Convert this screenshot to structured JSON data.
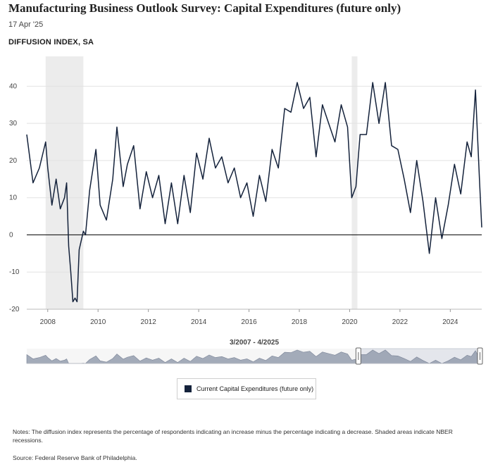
{
  "header": {
    "title": "Manufacturing Business Outlook Survey: Capital Expenditures (future only)",
    "date": "17 Apr '25",
    "units_label": "DIFFUSION INDEX, SA"
  },
  "navigator": {
    "range_label": "3/2007 - 4/2025"
  },
  "legend": {
    "label": "Current Capital Expenditures (future only)",
    "color": "#14223b"
  },
  "notes": "Notes: The diffusion index represents the percentage of respondents indicating an increase minus the percentage indicating a decrease. Shaded areas indicate NBER recessions.",
  "source": "Source: Federal Reserve Bank of Philadelphia.",
  "chart_data": {
    "type": "line",
    "x_range": [
      "2007-03",
      "2025-04"
    ],
    "ylim": [
      -20,
      45
    ],
    "y_ticks": [
      "-20",
      "-10",
      "0",
      "10",
      "20",
      "30",
      "40"
    ],
    "x_ticks": [
      "2008",
      "2010",
      "2012",
      "2014",
      "2016",
      "2018",
      "2020",
      "2022",
      "2024"
    ],
    "recessions": [
      [
        "2007-12",
        "2009-06"
      ],
      [
        "2020-02",
        "2020-04"
      ]
    ],
    "series": [
      {
        "name": "Current Capital Expenditures (future only)",
        "points": [
          [
            "2007-03",
            27
          ],
          [
            "2007-06",
            14
          ],
          [
            "2007-09",
            18
          ],
          [
            "2007-12",
            25
          ],
          [
            "2008-01",
            18
          ],
          [
            "2008-03",
            8
          ],
          [
            "2008-05",
            15
          ],
          [
            "2008-07",
            7
          ],
          [
            "2008-09",
            10
          ],
          [
            "2008-10",
            14
          ],
          [
            "2008-11",
            -3
          ],
          [
            "2008-12",
            -10
          ],
          [
            "2009-01",
            -18
          ],
          [
            "2009-02",
            -17
          ],
          [
            "2009-03",
            -18
          ],
          [
            "2009-04",
            -4
          ],
          [
            "2009-06",
            1
          ],
          [
            "2009-07",
            0
          ],
          [
            "2009-09",
            12
          ],
          [
            "2009-12",
            23
          ],
          [
            "2010-02",
            8
          ],
          [
            "2010-05",
            4
          ],
          [
            "2010-08",
            15
          ],
          [
            "2010-10",
            29
          ],
          [
            "2011-01",
            13
          ],
          [
            "2011-03",
            19
          ],
          [
            "2011-06",
            24
          ],
          [
            "2011-09",
            7
          ],
          [
            "2011-12",
            17
          ],
          [
            "2012-03",
            10
          ],
          [
            "2012-06",
            16
          ],
          [
            "2012-09",
            3
          ],
          [
            "2012-12",
            14
          ],
          [
            "2013-03",
            3
          ],
          [
            "2013-06",
            16
          ],
          [
            "2013-09",
            6
          ],
          [
            "2013-12",
            22
          ],
          [
            "2014-03",
            15
          ],
          [
            "2014-06",
            26
          ],
          [
            "2014-09",
            18
          ],
          [
            "2014-12",
            21
          ],
          [
            "2015-03",
            14
          ],
          [
            "2015-06",
            18
          ],
          [
            "2015-09",
            10
          ],
          [
            "2015-12",
            14
          ],
          [
            "2016-03",
            5
          ],
          [
            "2016-06",
            16
          ],
          [
            "2016-09",
            9
          ],
          [
            "2016-12",
            23
          ],
          [
            "2017-03",
            18
          ],
          [
            "2017-06",
            34
          ],
          [
            "2017-09",
            33
          ],
          [
            "2017-12",
            41
          ],
          [
            "2018-03",
            34
          ],
          [
            "2018-06",
            37
          ],
          [
            "2018-09",
            21
          ],
          [
            "2018-12",
            35
          ],
          [
            "2019-03",
            30
          ],
          [
            "2019-06",
            25
          ],
          [
            "2019-09",
            35
          ],
          [
            "2019-12",
            29
          ],
          [
            "2020-02",
            10
          ],
          [
            "2020-04",
            13
          ],
          [
            "2020-06",
            27
          ],
          [
            "2020-09",
            27
          ],
          [
            "2020-12",
            41
          ],
          [
            "2021-03",
            30
          ],
          [
            "2021-06",
            41
          ],
          [
            "2021-09",
            24
          ],
          [
            "2021-12",
            23
          ],
          [
            "2022-03",
            15
          ],
          [
            "2022-06",
            6
          ],
          [
            "2022-09",
            20
          ],
          [
            "2022-12",
            9
          ],
          [
            "2023-03",
            -5
          ],
          [
            "2023-06",
            10
          ],
          [
            "2023-09",
            -1
          ],
          [
            "2023-12",
            8
          ],
          [
            "2024-03",
            19
          ],
          [
            "2024-06",
            11
          ],
          [
            "2024-09",
            25
          ],
          [
            "2024-11",
            21
          ],
          [
            "2025-01",
            39
          ],
          [
            "2025-03",
            14
          ],
          [
            "2025-04",
            2
          ]
        ]
      }
    ],
    "grid": true
  }
}
